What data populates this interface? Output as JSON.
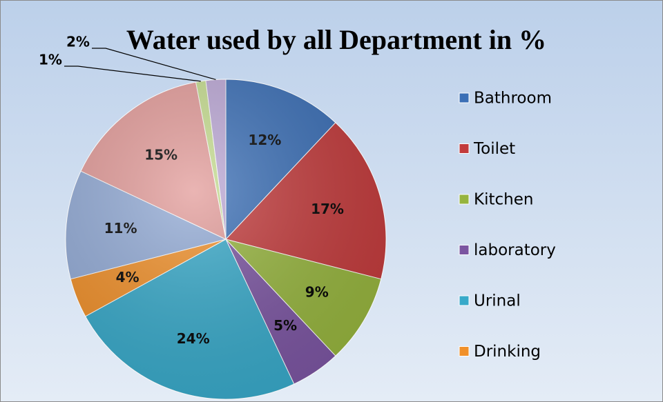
{
  "chart_data": {
    "type": "pie",
    "title": "Water used by all Department in %",
    "categories": [
      "Bathroom",
      "Toilet",
      "Kitchen",
      "laboratory",
      "Urinal",
      "Drinking",
      null,
      null,
      null,
      null
    ],
    "values": [
      12,
      17,
      9,
      5,
      24,
      4,
      11,
      15,
      1,
      2
    ],
    "value_labels": [
      "12%",
      "17%",
      "9%",
      "5%",
      "24%",
      "4%",
      "11%",
      "15%",
      "1%",
      "2%"
    ],
    "colors": [
      "#3b6fb6",
      "#c23b3c",
      "#96b43e",
      "#7b55a1",
      "#38a9c9",
      "#f0902a",
      "#93abd6",
      "#e39c9a",
      "#c6dd90",
      "#bca8d6"
    ],
    "legend": "right"
  }
}
